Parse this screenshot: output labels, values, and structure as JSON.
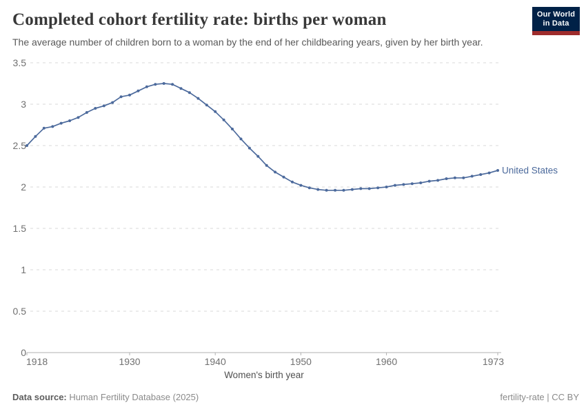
{
  "header": {
    "title": "Completed cohort fertility rate: births per woman",
    "subtitle": "The average number of children born to a woman by the end of her childbearing years, given by her birth year."
  },
  "logo": {
    "line1": "Our World",
    "line2": "in Data",
    "bg_color": "#002147",
    "accent_color": "#9e2c2c"
  },
  "chart_data": {
    "type": "line",
    "title": "Completed cohort fertility rate: births per woman",
    "xlabel": "Women's birth year",
    "ylabel": "",
    "xlim": [
      1918,
      1973
    ],
    "ylim": [
      0,
      3.5
    ],
    "x_ticks": [
      1918,
      1930,
      1940,
      1950,
      1960,
      1973
    ],
    "y_ticks": [
      0,
      0.5,
      1,
      1.5,
      2,
      2.5,
      3,
      3.5
    ],
    "grid": "horizontal-dashed",
    "legend_position": "end-of-line-label",
    "series": [
      {
        "name": "United States",
        "color": "#4C6A9C",
        "x": [
          1918,
          1919,
          1920,
          1921,
          1922,
          1923,
          1924,
          1925,
          1926,
          1927,
          1928,
          1929,
          1930,
          1931,
          1932,
          1933,
          1934,
          1935,
          1936,
          1937,
          1938,
          1939,
          1940,
          1941,
          1942,
          1943,
          1944,
          1945,
          1946,
          1947,
          1948,
          1949,
          1950,
          1951,
          1952,
          1953,
          1954,
          1955,
          1956,
          1957,
          1958,
          1959,
          1960,
          1961,
          1962,
          1963,
          1964,
          1965,
          1966,
          1967,
          1968,
          1969,
          1970,
          1971,
          1972,
          1973
        ],
        "values": [
          2.5,
          2.61,
          2.71,
          2.73,
          2.77,
          2.8,
          2.84,
          2.9,
          2.95,
          2.98,
          3.02,
          3.09,
          3.11,
          3.16,
          3.21,
          3.24,
          3.25,
          3.24,
          3.19,
          3.14,
          3.07,
          2.99,
          2.91,
          2.81,
          2.7,
          2.58,
          2.47,
          2.37,
          2.26,
          2.18,
          2.12,
          2.06,
          2.02,
          1.99,
          1.97,
          1.96,
          1.96,
          1.96,
          1.97,
          1.98,
          1.98,
          1.99,
          2.0,
          2.02,
          2.03,
          2.04,
          2.05,
          2.07,
          2.08,
          2.1,
          2.11,
          2.11,
          2.13,
          2.15,
          2.17,
          2.2
        ]
      }
    ],
    "colors": {
      "line": "#4C6A9C",
      "gridline": "#dadada",
      "axis": "#b0b0b0",
      "tick_label": "#707070"
    }
  },
  "footer": {
    "datasource_label": "Data source:",
    "datasource_value": " Human Fertility Database (2025)",
    "note": "fertility-rate | CC BY"
  }
}
